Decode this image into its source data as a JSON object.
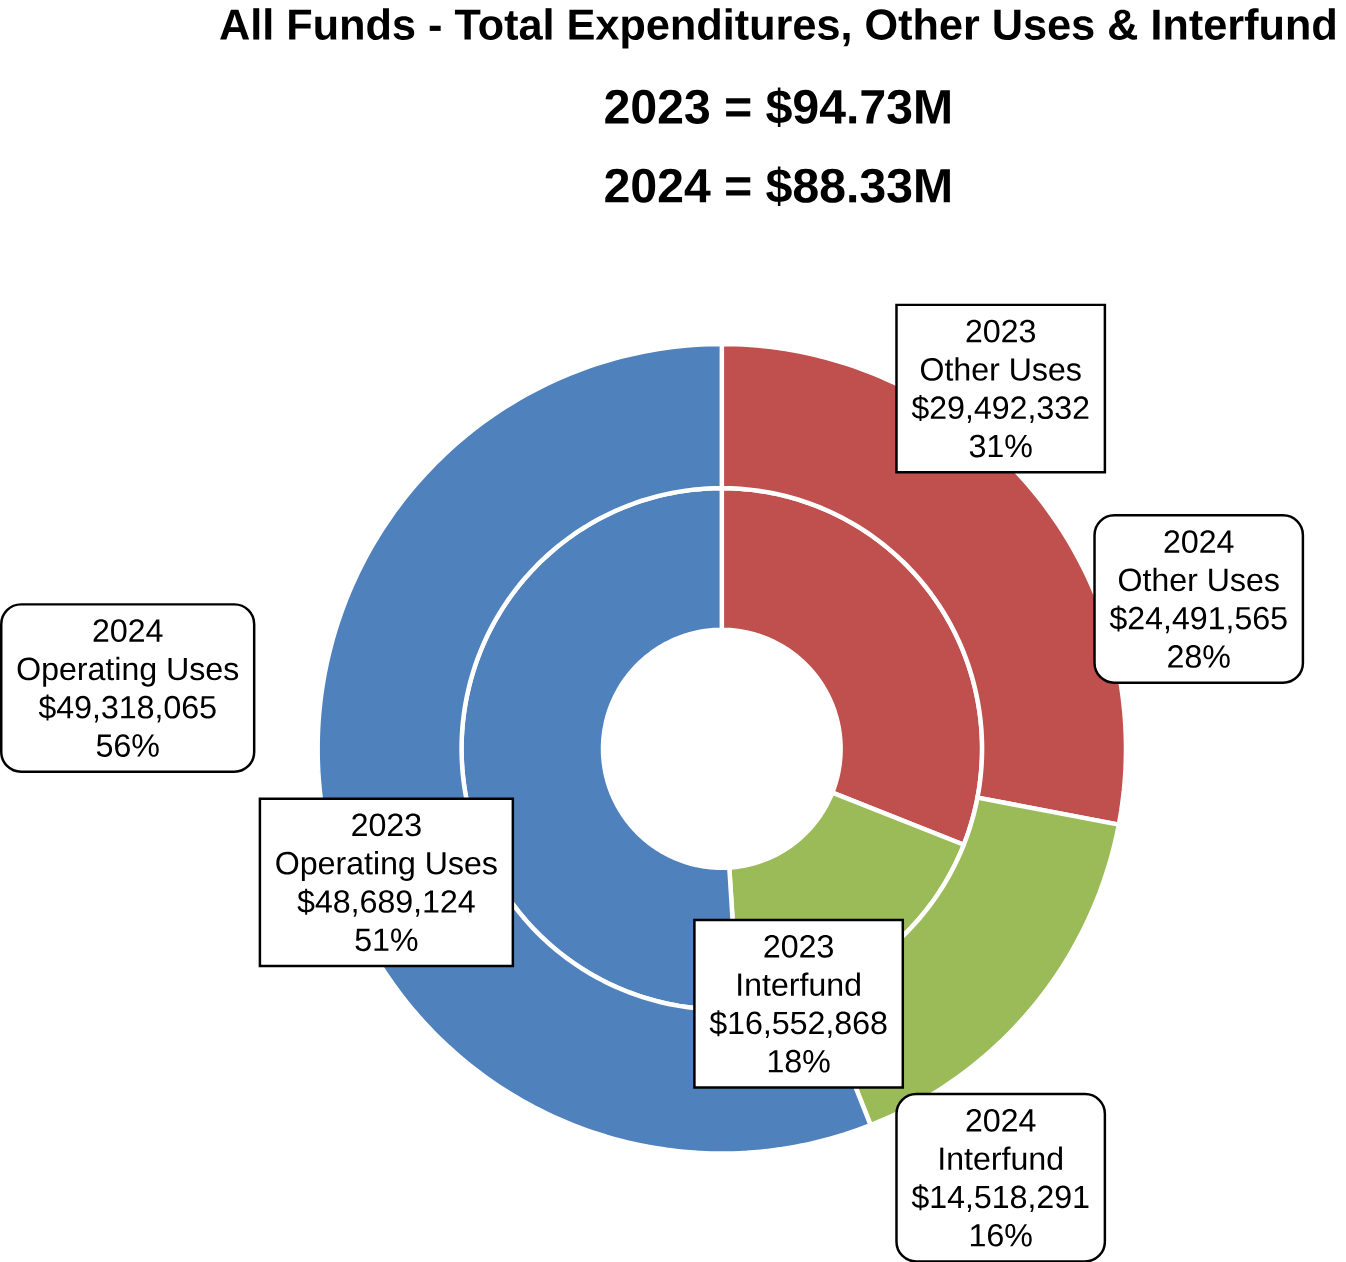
{
  "chart_data": {
    "type": "donut",
    "title": "All Funds - Total Expenditures, Other Uses & Interfund",
    "subtitle": "2023 = $94.73M",
    "annotations": [
      "2024 = $88.33M"
    ],
    "categories": [
      "Other Uses",
      "Interfund",
      "Operating Uses"
    ],
    "colors": [
      "#c0504d",
      "#9bbb59",
      "#4f81bd"
    ],
    "series": [
      {
        "name": "2023",
        "values": [
          31,
          18,
          51
        ],
        "value_labels": [
          [
            "$29,492,332",
            "31%"
          ],
          [
            "$16,552,868",
            "18%"
          ],
          [
            "$48,689,124",
            "51%"
          ]
        ]
      },
      {
        "name": "2024",
        "values": [
          28,
          16,
          56
        ],
        "value_labels": [
          [
            "$24,491,565",
            "28%"
          ],
          [
            "$14,518,291",
            "16%"
          ],
          [
            "$49,318,065",
            "56%"
          ]
        ]
      }
    ]
  }
}
